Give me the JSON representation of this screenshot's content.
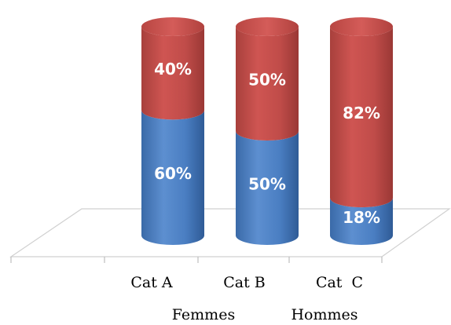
{
  "chart_data": {
    "type": "bar",
    "stacked": true,
    "percent_stacked": true,
    "categories": [
      "Cat A",
      "Cat B",
      "Cat  C"
    ],
    "series": [
      {
        "name": "Femmes",
        "values": [
          60,
          50,
          18
        ],
        "labels": [
          "60%",
          "50%",
          "18%"
        ],
        "color": "#4f81bd"
      },
      {
        "name": "Hommes",
        "values": [
          40,
          50,
          82
        ],
        "labels": [
          "40%",
          "50%",
          "82%"
        ],
        "color": "#c0504d"
      }
    ],
    "ylim": [
      0,
      100
    ],
    "legend_position": "bottom",
    "grid": false,
    "style": "3d-cylinder"
  }
}
